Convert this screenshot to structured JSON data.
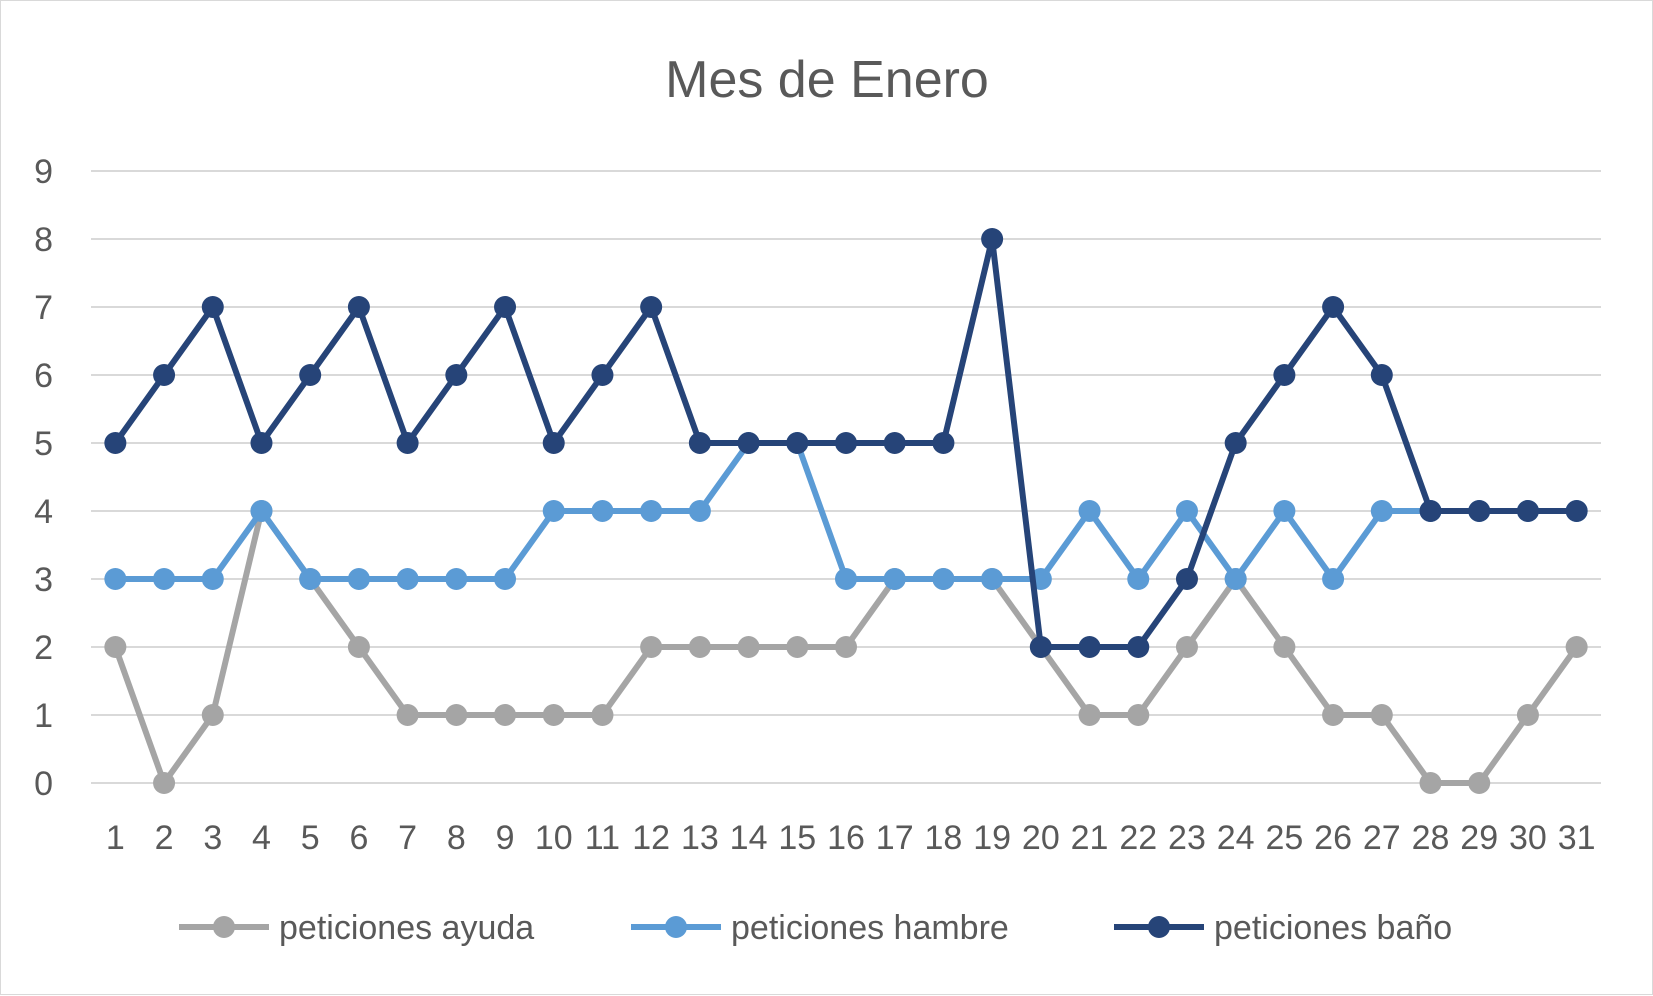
{
  "chart_data": {
    "type": "line",
    "title": "Mes de Enero",
    "xlabel": "",
    "ylabel": "",
    "ylim": [
      0,
      9
    ],
    "grid": true,
    "legend_position": "bottom",
    "categories": [
      "1",
      "2",
      "3",
      "4",
      "5",
      "6",
      "7",
      "8",
      "9",
      "10",
      "11",
      "12",
      "13",
      "14",
      "15",
      "16",
      "17",
      "18",
      "19",
      "20",
      "21",
      "22",
      "23",
      "24",
      "25",
      "26",
      "27",
      "28",
      "29",
      "30",
      "31"
    ],
    "yticks": [
      "0",
      "1",
      "2",
      "3",
      "4",
      "5",
      "6",
      "7",
      "8",
      "9"
    ],
    "series": [
      {
        "name": "peticiones ayuda",
        "color": "#a5a5a5",
        "values": [
          2,
          0,
          1,
          4,
          3,
          2,
          1,
          1,
          1,
          1,
          1,
          2,
          2,
          2,
          2,
          2,
          3,
          3,
          3,
          2,
          1,
          1,
          2,
          3,
          2,
          1,
          1,
          0,
          0,
          1,
          2
        ]
      },
      {
        "name": "peticiones hambre",
        "color": "#5b9bd5",
        "values": [
          3,
          3,
          3,
          4,
          3,
          3,
          3,
          3,
          3,
          4,
          4,
          4,
          4,
          5,
          5,
          3,
          3,
          3,
          3,
          3,
          4,
          3,
          4,
          3,
          4,
          3,
          4,
          4,
          4,
          4,
          4
        ]
      },
      {
        "name": "peticiones baño",
        "color": "#264478",
        "values": [
          5,
          6,
          7,
          5,
          6,
          7,
          5,
          6,
          7,
          5,
          6,
          7,
          5,
          5,
          5,
          5,
          5,
          5,
          8,
          2,
          2,
          2,
          3,
          5,
          6,
          7,
          6,
          4,
          4,
          4,
          4
        ]
      }
    ]
  }
}
